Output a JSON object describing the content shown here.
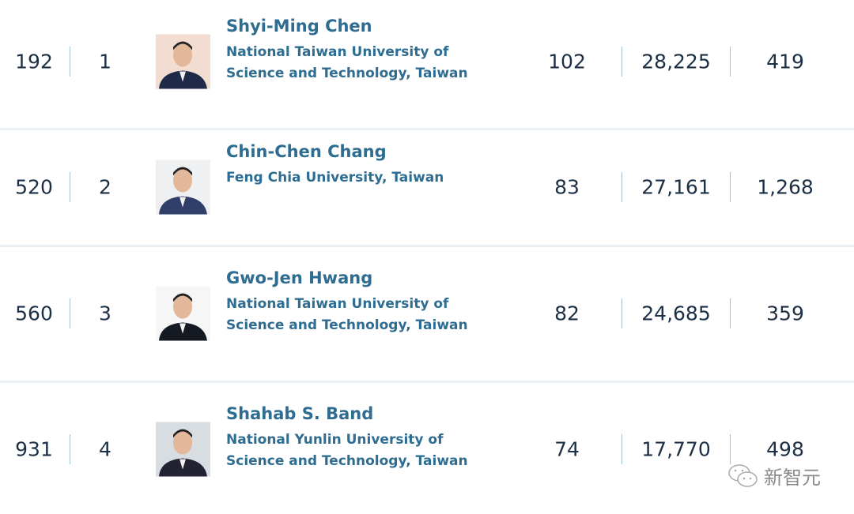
{
  "rows": [
    {
      "overall_rank": "192",
      "rank": "1",
      "name": "Shyi-Ming Chen",
      "institution": "National Taiwan University of Science and Technology, Taiwan",
      "h_index": "102",
      "citations": "28,225",
      "publications": "419"
    },
    {
      "overall_rank": "520",
      "rank": "2",
      "name": "Chin-Chen Chang",
      "institution": "Feng Chia University, Taiwan",
      "h_index": "83",
      "citations": "27,161",
      "publications": "1,268"
    },
    {
      "overall_rank": "560",
      "rank": "3",
      "name": "Gwo-Jen Hwang",
      "institution": "National Taiwan University of Science and Technology, Taiwan",
      "h_index": "82",
      "citations": "24,685",
      "publications": "359"
    },
    {
      "overall_rank": "931",
      "rank": "4",
      "name": "Shahab S. Band",
      "institution": "National Yunlin University of Science and Technology, Taiwan",
      "h_index": "74",
      "citations": "17,770",
      "publications": "498"
    }
  ],
  "watermark": "新智元",
  "colors": {
    "name": "#2e6d91",
    "number": "#1c2f44",
    "separator": "#9fc1d3"
  }
}
